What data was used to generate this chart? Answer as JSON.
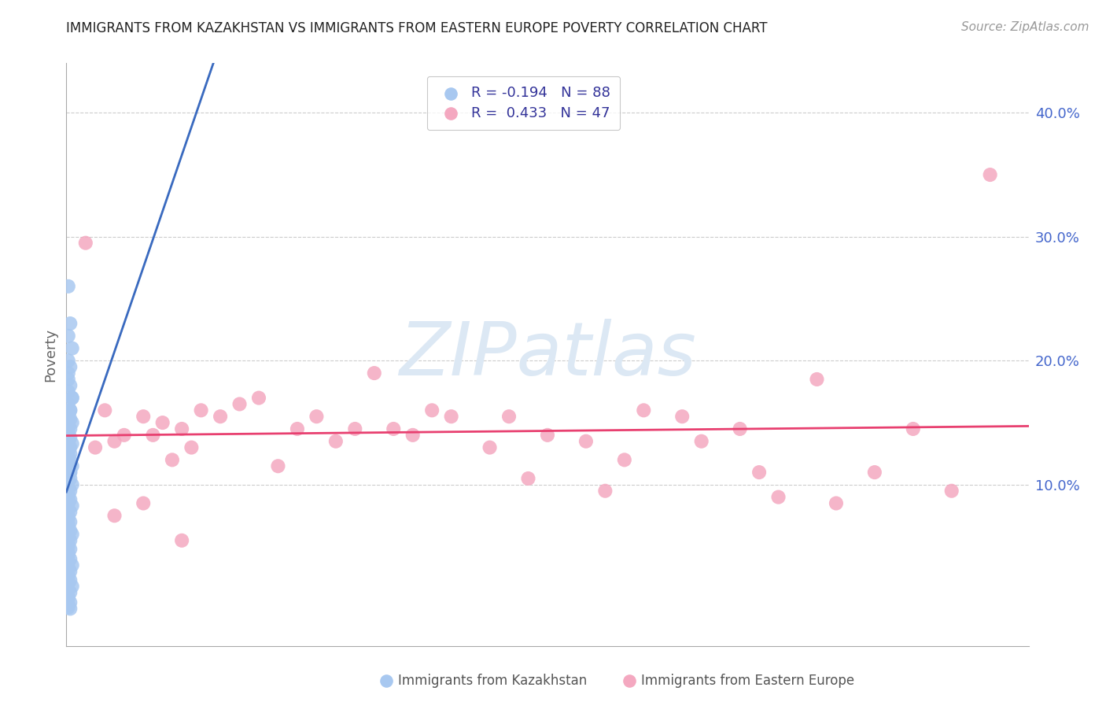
{
  "title": "IMMIGRANTS FROM KAZAKHSTAN VS IMMIGRANTS FROM EASTERN EUROPE POVERTY CORRELATION CHART",
  "source": "Source: ZipAtlas.com",
  "ylabel": "Poverty",
  "ytick_labels": [
    "10.0%",
    "20.0%",
    "30.0%",
    "40.0%"
  ],
  "ytick_values": [
    0.1,
    0.2,
    0.3,
    0.4
  ],
  "xlim": [
    0.0,
    0.5
  ],
  "ylim": [
    -0.03,
    0.44
  ],
  "legend_label1": "R = -0.194   N = 88",
  "legend_label2": "R =  0.433   N = 47",
  "series1_color": "#a8c8f0",
  "series2_color": "#f4a8c0",
  "trendline1_color": "#3a6abf",
  "trendline2_color": "#e84070",
  "trendline_dash_color": "#c0d8f0",
  "watermark_color": "#dce8f4",
  "axis_label_color": "#4466cc",
  "grid_color": "#cccccc",
  "source_color": "#999999",
  "ylabel_color": "#666666",
  "legend_text_color": "#333399",
  "bottom_label_color": "#555555",
  "kaz_x": [
    0.001,
    0.002,
    0.001,
    0.003,
    0.001,
    0.002,
    0.001,
    0.001,
    0.002,
    0.001,
    0.003,
    0.001,
    0.002,
    0.001,
    0.001,
    0.002,
    0.003,
    0.001,
    0.002,
    0.001,
    0.001,
    0.002,
    0.001,
    0.003,
    0.002,
    0.001,
    0.001,
    0.002,
    0.001,
    0.002,
    0.001,
    0.003,
    0.001,
    0.002,
    0.001,
    0.001,
    0.002,
    0.001,
    0.003,
    0.001,
    0.002,
    0.001,
    0.001,
    0.002,
    0.001,
    0.003,
    0.001,
    0.002,
    0.001,
    0.001,
    0.002,
    0.001,
    0.001,
    0.002,
    0.003,
    0.001,
    0.002,
    0.001,
    0.001,
    0.002,
    0.001,
    0.001,
    0.002,
    0.001,
    0.003,
    0.001,
    0.002,
    0.001,
    0.001,
    0.002,
    0.001,
    0.003,
    0.001,
    0.002,
    0.001,
    0.001,
    0.002,
    0.001,
    0.001,
    0.002,
    0.001,
    0.001,
    0.002,
    0.001,
    0.003,
    0.001,
    0.002,
    0.001
  ],
  "kaz_y": [
    0.26,
    0.23,
    0.22,
    0.21,
    0.2,
    0.195,
    0.19,
    0.185,
    0.18,
    0.175,
    0.17,
    0.165,
    0.16,
    0.158,
    0.155,
    0.153,
    0.15,
    0.148,
    0.145,
    0.143,
    0.14,
    0.138,
    0.135,
    0.133,
    0.13,
    0.128,
    0.127,
    0.125,
    0.123,
    0.12,
    0.118,
    0.115,
    0.113,
    0.11,
    0.108,
    0.107,
    0.105,
    0.103,
    0.1,
    0.098,
    0.095,
    0.093,
    0.09,
    0.088,
    0.085,
    0.083,
    0.08,
    0.078,
    0.075,
    0.073,
    0.07,
    0.068,
    0.065,
    0.063,
    0.06,
    0.058,
    0.055,
    0.053,
    0.05,
    0.048,
    0.045,
    0.043,
    0.04,
    0.038,
    0.035,
    0.033,
    0.03,
    0.028,
    0.025,
    0.023,
    0.02,
    0.018,
    0.015,
    0.013,
    0.01,
    0.008,
    0.005,
    0.003,
    0.001,
    0.0,
    0.155,
    0.14,
    0.16,
    0.12,
    0.17,
    0.13,
    0.11,
    0.09
  ],
  "ee_x": [
    0.01,
    0.015,
    0.02,
    0.025,
    0.03,
    0.04,
    0.045,
    0.05,
    0.055,
    0.06,
    0.065,
    0.07,
    0.08,
    0.09,
    0.1,
    0.11,
    0.12,
    0.13,
    0.14,
    0.15,
    0.16,
    0.17,
    0.18,
    0.19,
    0.2,
    0.22,
    0.23,
    0.24,
    0.25,
    0.27,
    0.28,
    0.29,
    0.3,
    0.32,
    0.33,
    0.35,
    0.36,
    0.37,
    0.39,
    0.4,
    0.42,
    0.44,
    0.46,
    0.48,
    0.025,
    0.04,
    0.06
  ],
  "ee_y": [
    0.295,
    0.13,
    0.16,
    0.135,
    0.14,
    0.155,
    0.14,
    0.15,
    0.12,
    0.145,
    0.13,
    0.16,
    0.155,
    0.165,
    0.17,
    0.115,
    0.145,
    0.155,
    0.135,
    0.145,
    0.19,
    0.145,
    0.14,
    0.16,
    0.155,
    0.13,
    0.155,
    0.105,
    0.14,
    0.135,
    0.095,
    0.12,
    0.16,
    0.155,
    0.135,
    0.145,
    0.11,
    0.09,
    0.185,
    0.085,
    0.11,
    0.145,
    0.095,
    0.35,
    0.075,
    0.085,
    0.055
  ]
}
